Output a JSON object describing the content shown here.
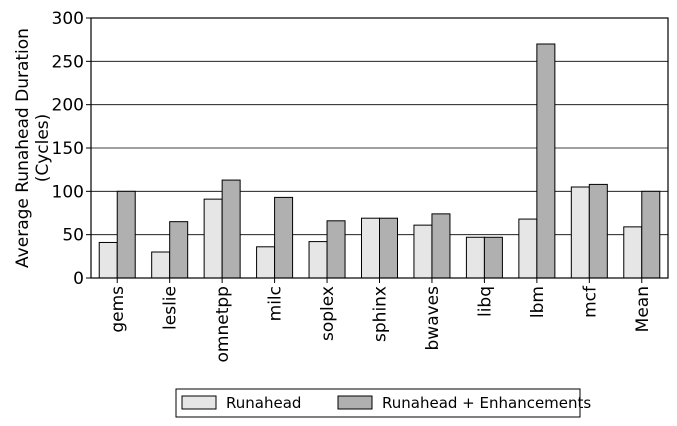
{
  "chart_data": {
    "type": "bar",
    "title": "",
    "xlabel": "",
    "ylabel": "Average Runahead Duration\n(Cycles)",
    "ylim": [
      0,
      300
    ],
    "yticks": [
      0,
      50,
      100,
      150,
      200,
      250,
      300
    ],
    "grid": "horizontal",
    "legend_position": "bottom-center",
    "categories": [
      "gems",
      "leslie",
      "omnetpp",
      "milc",
      "soplex",
      "sphinx",
      "bwaves",
      "libq",
      "lbm",
      "mcf",
      "Mean"
    ],
    "series": [
      {
        "name": "Runahead",
        "color": "#e6e6e6",
        "values": [
          41,
          30,
          91,
          36,
          42,
          69,
          61,
          47,
          68,
          105,
          59
        ]
      },
      {
        "name": "Runahead + Enhancements",
        "color": "#b0b0b0",
        "values": [
          100,
          65,
          113,
          93,
          66,
          69,
          74,
          47,
          270,
          108,
          100
        ]
      }
    ]
  }
}
